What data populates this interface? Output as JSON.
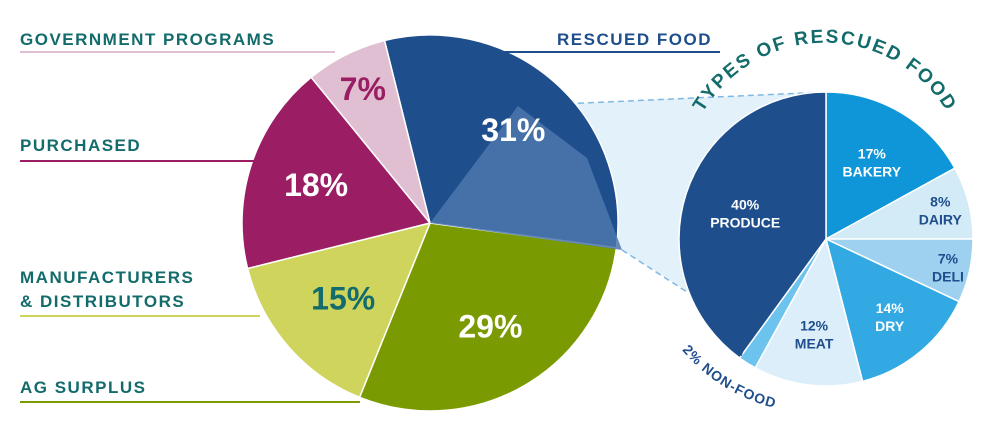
{
  "chart_data": [
    {
      "type": "pie",
      "title": "",
      "slices": [
        {
          "label": "RESCUED FOOD",
          "value": 31,
          "display": "31%",
          "color": "#1f4e8c",
          "text_color": "#ffffff"
        },
        {
          "label": "AG SURPLUS",
          "value": 29,
          "display": "29%",
          "color": "#7a9a01",
          "text_color": "#ffffff"
        },
        {
          "label": "MANUFACTURERS & DISTRIBUTORS",
          "label_lines": [
            "MANUFACTURERS",
            "& DISTRIBUTORS"
          ],
          "value": 15,
          "display": "15%",
          "color": "#cfd45c",
          "text_color": "#136b6b"
        },
        {
          "label": "PURCHASED",
          "value": 18,
          "display": "18%",
          "color": "#9b1d63",
          "text_color": "#ffffff"
        },
        {
          "label": "GOVERNMENT PROGRAMS",
          "value": 7,
          "display": "7%",
          "color": "#e0bfd2",
          "text_color": "#9b1d63"
        }
      ]
    },
    {
      "type": "pie",
      "title": "TYPES OF RESCUED FOOD",
      "slices": [
        {
          "label": "BAKERY",
          "value": 17,
          "display": "17%",
          "color": "#0f96d8",
          "text_color": "#ffffff"
        },
        {
          "label": "DAIRY",
          "value": 8,
          "display": "8%",
          "color": "#d3eaf7",
          "text_color": "#1f4e8c"
        },
        {
          "label": "DELI",
          "value": 7,
          "display": "7%",
          "color": "#9dd1ef",
          "text_color": "#1f4e8c"
        },
        {
          "label": "DRY",
          "value": 14,
          "display": "14%",
          "color": "#33a9e3",
          "text_color": "#ffffff"
        },
        {
          "label": "MEAT",
          "value": 12,
          "display": "12%",
          "color": "#dbeefa",
          "text_color": "#1f4e8c"
        },
        {
          "label": "NON-FOOD",
          "value": 2,
          "display": "2%",
          "color": "#6cc3ee",
          "text_color": "#1f4e8c",
          "outside_label": "2% NON-FOOD"
        },
        {
          "label": "PRODUCE",
          "value": 40,
          "display": "40%",
          "color": "#1f4e8c",
          "text_color": "#ffffff"
        }
      ]
    }
  ]
}
